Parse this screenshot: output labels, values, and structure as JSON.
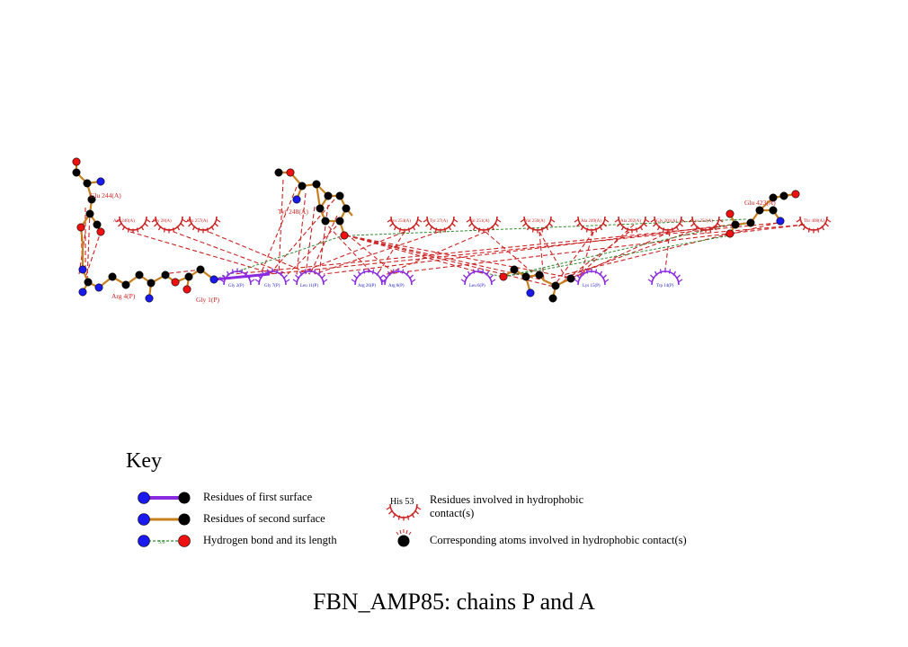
{
  "title": "FBN_AMP85: chains P and A",
  "key": {
    "title": "Key",
    "first_surface": "Residues of first surface",
    "second_surface": "Residues of second surface",
    "hbond": "Hydrogen bond and its length",
    "hbond_sample_length": "3.0",
    "hydrophobic_residue_example": "His 53",
    "hydrophobic_residues_line1": "Residues involved in hydrophobic",
    "hydrophobic_residues_line2": "contact(s)",
    "hydrophobic_atoms": "Corresponding atoms involved in hydrophobic contact(s)"
  },
  "colors": {
    "first_surface_bond": "#8a2be2",
    "second_surface_bond": "#c8801e",
    "hbond": "#2e8b2e",
    "hydrophobic_chain_a": "#cc2222",
    "hydrophobic_chain_p": "#8a2be2",
    "label_chain_a": "#cc2222",
    "label_chain_p": "#2222cc",
    "carbon": "#000000",
    "nitrogen": "#1a1aee",
    "oxygen": "#ee1111"
  },
  "residues": {
    "glu244": "Glu 244(A)",
    "tyr248": "Tyr 248(A)",
    "glu423": "Glu 423(A)",
    "arg4": "Arg 4(P)",
    "gly1": "Gly 1(P)",
    "asn240": "Asn 240(A)",
    "gly28": "Gly 28(A)",
    "glu257": "Glu 257(A)",
    "lys254": "Lys 254(A)",
    "tyr27": "Tyr 27(A)",
    "val251": "Val 251(A)",
    "val250": "Val 250(A)",
    "ala249": "Ala 249(A)",
    "ala202": "Ala 202(A)",
    "gly201": "Gly 201(A)",
    "lys252": "Lys 252(A)",
    "thr408": "Thr 408(A)",
    "gly2": "Gly 2(P)",
    "gly7": "Gly 7(P)",
    "leu11": "Leu 11(P)",
    "arg26": "Arg 26(P)",
    "arg8": "Arg 8(P)",
    "leu6": "Leu 6(P)",
    "lys15": "Lys 15(P)",
    "trp14": "Trp 14(P)"
  }
}
